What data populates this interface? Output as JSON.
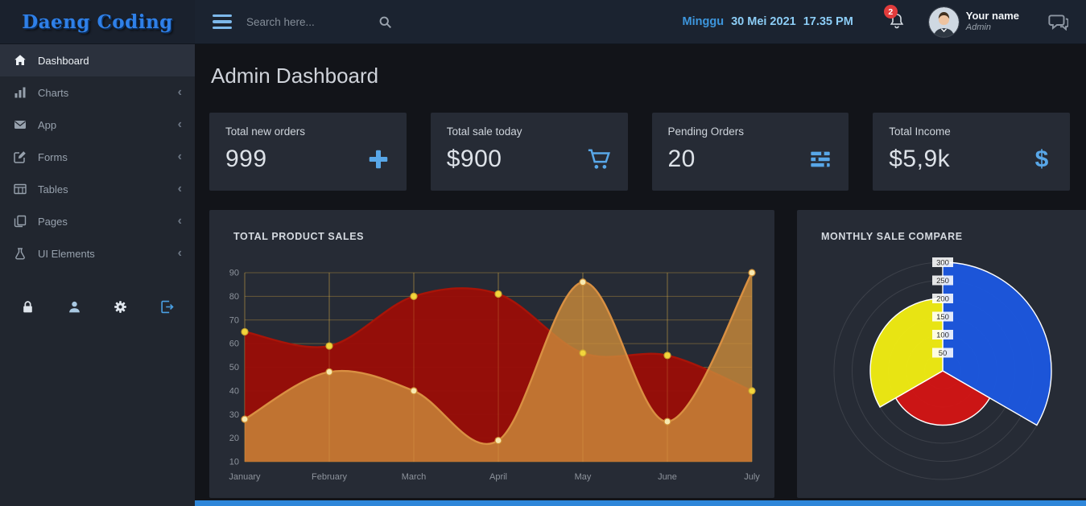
{
  "app": {
    "logo": "Daeng Coding"
  },
  "header": {
    "search_placeholder": "Search here...",
    "day": "Minggu",
    "date": "30 Mei 2021",
    "time": "17.35 PM",
    "notification_count": "2",
    "user_name": "Your name",
    "user_role": "Admin",
    "icons": {
      "menu": "hamburger-icon",
      "search": "search-icon",
      "notifications": "bell-icon",
      "messages": "comments-icon",
      "avatar": "user-avatar"
    }
  },
  "sidebar": {
    "submenu_indicator": "‹",
    "items": [
      {
        "label": "Dashboard",
        "icon": "home-icon",
        "active": true,
        "has_submenu": false
      },
      {
        "label": "Charts",
        "icon": "bar-chart-icon",
        "active": false,
        "has_submenu": true
      },
      {
        "label": "App",
        "icon": "envelope-icon",
        "active": false,
        "has_submenu": true
      },
      {
        "label": "Forms",
        "icon": "edit-icon",
        "active": false,
        "has_submenu": true
      },
      {
        "label": "Tables",
        "icon": "table-icon",
        "active": false,
        "has_submenu": true
      },
      {
        "label": "Pages",
        "icon": "pages-icon",
        "active": false,
        "has_submenu": true
      },
      {
        "label": "UI Elements",
        "icon": "flask-icon",
        "active": false,
        "has_submenu": true
      }
    ],
    "tools": [
      {
        "icon": "lock-icon"
      },
      {
        "icon": "user-icon"
      },
      {
        "icon": "gear-icon"
      },
      {
        "icon": "sign-out-icon"
      }
    ]
  },
  "main": {
    "title": "Admin Dashboard"
  },
  "stats": [
    {
      "label": "Total new orders",
      "value": "999",
      "icon": "plus-icon"
    },
    {
      "label": "Total sale today",
      "value": "$900",
      "icon": "cart-icon"
    },
    {
      "label": "Pending Orders",
      "value": "20",
      "icon": "tasks-icon"
    },
    {
      "label": "Total Income",
      "value": "$5,9k",
      "icon": "dollar-icon",
      "icon_glyph": "$"
    }
  ],
  "colors": {
    "accent_blue": "#58a7e8",
    "badge_red": "#e23c3c",
    "footer_bar": "#2e86d9",
    "logo_blue": "#2f80e8"
  },
  "chart_data": [
    {
      "type": "area",
      "title": "TOTAL PRODUCT SALES",
      "categories": [
        "January",
        "February",
        "March",
        "April",
        "May",
        "June",
        "July"
      ],
      "series": [
        {
          "name": "red-series",
          "values": [
            65,
            59,
            80,
            81,
            56,
            55,
            40
          ],
          "fill": "rgba(154,13,7,0.95)",
          "stroke": "#a81408",
          "point": "#f2d53c",
          "point_stroke": "#c9a52e"
        },
        {
          "name": "orange-series",
          "values": [
            28,
            48,
            40,
            19,
            86,
            27,
            90
          ],
          "fill": "rgba(201,138,59,0.82)",
          "stroke": "#d99042",
          "point": "#f7e9b0",
          "point_stroke": "#cf8f35"
        }
      ],
      "ylim": [
        10,
        90
      ],
      "ytick_step": 10,
      "grid": true,
      "legend": false,
      "grid_color": "rgba(214,168,66,0.38)",
      "grid_overlay": "rgba(240,200,90,0.22)"
    },
    {
      "type": "polar-area",
      "title": "MONTHLY SALE COMPARE",
      "slices": [
        {
          "label": "blue",
          "value": 300,
          "color": "#1b57e2"
        },
        {
          "label": "red",
          "value": 150,
          "color": "#d41414"
        },
        {
          "label": "yellow",
          "value": 200,
          "color": "#f2ee12"
        }
      ],
      "rticks": [
        50,
        100,
        150,
        200,
        250,
        300
      ],
      "rmax": 300,
      "ring_color": "rgba(255,255,255,0.10)",
      "legend": false
    }
  ]
}
